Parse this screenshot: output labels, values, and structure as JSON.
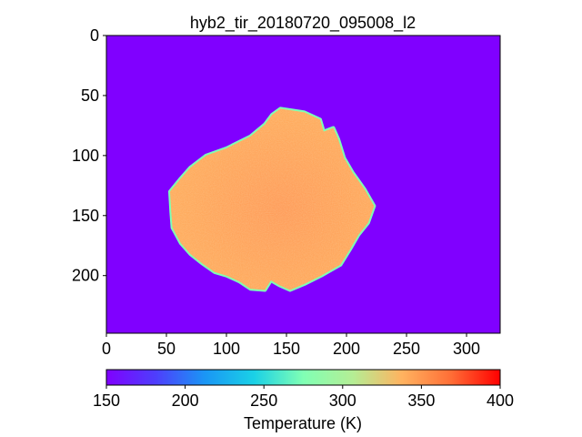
{
  "chart_data": {
    "type": "heatmap",
    "title": "hyb2_tir_20180720_095008_l2",
    "x_ticks": [
      0,
      50,
      100,
      150,
      200,
      250,
      300
    ],
    "y_ticks": [
      0,
      50,
      100,
      150,
      200
    ],
    "xlim": [
      0,
      328
    ],
    "ylim": [
      248,
      0
    ],
    "colorbar": {
      "label": "Temperature (K)",
      "range": [
        150,
        400
      ],
      "ticks": [
        150,
        200,
        250,
        300,
        350,
        400
      ],
      "colormap": "rainbow"
    },
    "background_value": 150,
    "object": {
      "name": "",
      "typical_value": 340,
      "outline": [
        [
          145,
          61
        ],
        [
          165,
          64
        ],
        [
          178,
          70
        ],
        [
          181,
          80
        ],
        [
          189,
          77
        ],
        [
          193,
          86
        ],
        [
          198,
          102
        ],
        [
          205,
          114
        ],
        [
          215,
          128
        ],
        [
          223,
          142
        ],
        [
          218,
          156
        ],
        [
          210,
          166
        ],
        [
          203,
          178
        ],
        [
          195,
          191
        ],
        [
          179,
          200
        ],
        [
          165,
          207
        ],
        [
          153,
          212
        ],
        [
          144,
          208
        ],
        [
          137,
          204
        ],
        [
          132,
          212
        ],
        [
          120,
          211
        ],
        [
          111,
          205
        ],
        [
          100,
          200
        ],
        [
          90,
          197
        ],
        [
          80,
          190
        ],
        [
          70,
          182
        ],
        [
          62,
          173
        ],
        [
          55,
          160
        ],
        [
          54,
          147
        ],
        [
          53,
          130
        ],
        [
          62,
          119
        ],
        [
          70,
          110
        ],
        [
          83,
          100
        ],
        [
          100,
          94
        ],
        [
          120,
          84
        ],
        [
          132,
          74
        ],
        [
          138,
          66
        ]
      ]
    }
  }
}
